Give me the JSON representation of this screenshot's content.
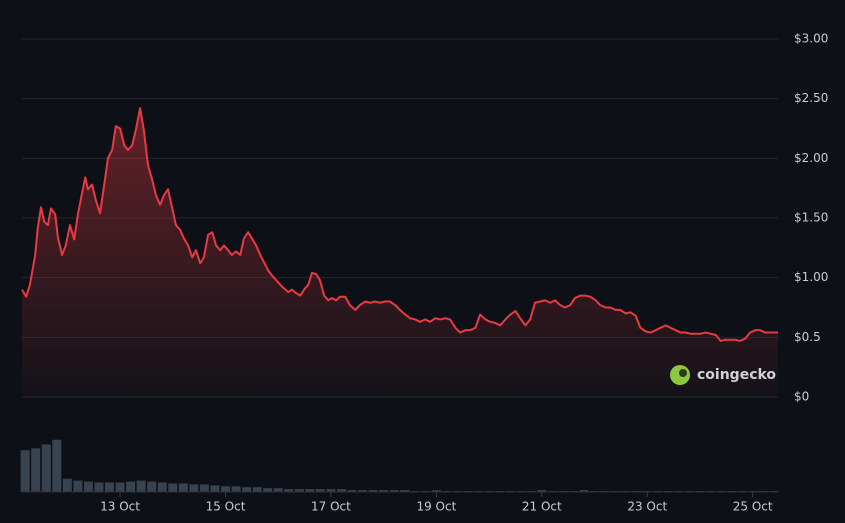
{
  "chart_data": {
    "type": "area",
    "color": "#ea3943",
    "watermark": "coingecko",
    "xlim": [
      11.14,
      25.48
    ],
    "xticks": [
      {
        "value": 13,
        "label": "13 Oct"
      },
      {
        "value": 15,
        "label": "15 Oct"
      },
      {
        "value": 17,
        "label": "17 Oct"
      },
      {
        "value": 19,
        "label": "19 Oct"
      },
      {
        "value": 21,
        "label": "21 Oct"
      },
      {
        "value": 23,
        "label": "23 Oct"
      },
      {
        "value": 25,
        "label": "25 Oct"
      }
    ],
    "ylim": [
      0,
      3
    ],
    "yticks": [
      {
        "value": 0,
        "label": "$0"
      },
      {
        "value": 0.5,
        "label": "$0.5"
      },
      {
        "value": 1,
        "label": "$1.00"
      },
      {
        "value": 1.5,
        "label": "$1.50"
      },
      {
        "value": 2,
        "label": "$2.00"
      },
      {
        "value": 2.5,
        "label": "$2.50"
      },
      {
        "value": 3,
        "label": "$3.00"
      }
    ],
    "grid": true,
    "x": [
      11.14,
      11.22,
      11.29,
      11.39,
      11.44,
      11.5,
      11.56,
      11.63,
      11.69,
      11.77,
      11.82,
      11.9,
      11.97,
      12.05,
      12.13,
      12.2,
      12.28,
      12.34,
      12.39,
      12.47,
      12.54,
      12.62,
      12.7,
      12.77,
      12.85,
      12.92,
      13.0,
      13.08,
      13.15,
      13.23,
      13.3,
      13.38,
      13.45,
      13.53,
      13.61,
      13.68,
      13.76,
      13.83,
      13.91,
      13.99,
      14.06,
      14.14,
      14.21,
      14.29,
      14.37,
      14.44,
      14.52,
      14.59,
      14.67,
      14.75,
      14.82,
      14.9,
      14.97,
      15.05,
      15.12,
      15.2,
      15.28,
      15.35,
      15.43,
      15.5,
      15.58,
      15.66,
      15.73,
      15.81,
      15.88,
      15.96,
      16.04,
      16.11,
      16.19,
      16.26,
      16.34,
      16.42,
      16.49,
      16.57,
      16.64,
      16.72,
      16.79,
      16.87,
      16.95,
      17.02,
      17.1,
      17.17,
      17.27,
      17.36,
      17.46,
      17.55,
      17.65,
      17.74,
      17.84,
      17.93,
      18.03,
      18.12,
      18.22,
      18.31,
      18.41,
      18.5,
      18.6,
      18.69,
      18.79,
      18.88,
      18.98,
      19.07,
      19.17,
      19.26,
      19.36,
      19.45,
      19.55,
      19.64,
      19.74,
      19.83,
      19.93,
      20.02,
      20.12,
      20.21,
      20.31,
      20.4,
      20.5,
      20.59,
      20.69,
      20.78,
      20.87,
      20.97,
      21.06,
      21.16,
      21.25,
      21.35,
      21.44,
      21.54,
      21.63,
      21.73,
      21.82,
      21.92,
      22.02,
      22.11,
      22.21,
      22.3,
      22.4,
      22.49,
      22.59,
      22.68,
      22.78,
      22.87,
      22.97,
      23.06,
      23.16,
      23.25,
      23.35,
      23.44,
      23.54,
      23.63,
      23.73,
      23.82,
      23.92,
      24.01,
      24.11,
      24.2,
      24.3,
      24.39,
      24.48,
      24.57,
      24.67,
      24.76,
      24.86,
      24.95,
      25.05,
      25.14,
      25.24,
      25.33,
      25.48
    ],
    "values": [
      0.9,
      0.84,
      0.94,
      1.19,
      1.42,
      1.59,
      1.47,
      1.44,
      1.58,
      1.53,
      1.34,
      1.19,
      1.27,
      1.44,
      1.32,
      1.53,
      1.71,
      1.84,
      1.74,
      1.78,
      1.65,
      1.54,
      1.78,
      2.0,
      2.07,
      2.27,
      2.25,
      2.11,
      2.07,
      2.11,
      2.24,
      2.42,
      2.24,
      1.94,
      1.82,
      1.69,
      1.61,
      1.69,
      1.74,
      1.58,
      1.44,
      1.4,
      1.33,
      1.27,
      1.17,
      1.23,
      1.12,
      1.17,
      1.36,
      1.38,
      1.27,
      1.23,
      1.27,
      1.23,
      1.19,
      1.22,
      1.19,
      1.33,
      1.38,
      1.33,
      1.27,
      1.19,
      1.13,
      1.06,
      1.02,
      0.98,
      0.94,
      0.91,
      0.88,
      0.9,
      0.87,
      0.85,
      0.9,
      0.94,
      1.04,
      1.03,
      0.98,
      0.85,
      0.81,
      0.83,
      0.81,
      0.84,
      0.84,
      0.77,
      0.73,
      0.77,
      0.8,
      0.79,
      0.8,
      0.79,
      0.8,
      0.8,
      0.77,
      0.73,
      0.69,
      0.66,
      0.65,
      0.63,
      0.65,
      0.63,
      0.66,
      0.65,
      0.66,
      0.65,
      0.58,
      0.54,
      0.56,
      0.56,
      0.58,
      0.69,
      0.65,
      0.63,
      0.62,
      0.6,
      0.65,
      0.69,
      0.72,
      0.66,
      0.6,
      0.65,
      0.79,
      0.8,
      0.81,
      0.79,
      0.81,
      0.77,
      0.75,
      0.77,
      0.83,
      0.85,
      0.85,
      0.84,
      0.81,
      0.77,
      0.75,
      0.75,
      0.73,
      0.73,
      0.7,
      0.71,
      0.68,
      0.58,
      0.55,
      0.54,
      0.56,
      0.58,
      0.6,
      0.58,
      0.56,
      0.54,
      0.54,
      0.53,
      0.53,
      0.53,
      0.54,
      0.53,
      0.52,
      0.47,
      0.48,
      0.48,
      0.48,
      0.47,
      0.49,
      0.54,
      0.56,
      0.56,
      0.54,
      0.54,
      0.54
    ],
    "volume": {
      "color": "#39424f",
      "ylim": [
        0,
        60
      ],
      "x": [
        11.2,
        11.4,
        11.6,
        11.8,
        12.0,
        12.2,
        12.4,
        12.6,
        12.8,
        13.0,
        13.2,
        13.4,
        13.6,
        13.8,
        14.0,
        14.2,
        14.4,
        14.6,
        14.8,
        15.0,
        15.2,
        15.4,
        15.6,
        15.8,
        16.0,
        16.2,
        16.4,
        16.6,
        16.8,
        17.0,
        17.2,
        17.4,
        17.6,
        17.8,
        18.0,
        18.2,
        18.4,
        18.6,
        18.8,
        19.0,
        19.2,
        19.4,
        19.6,
        19.8,
        20.0,
        20.2,
        20.4,
        20.6,
        20.8,
        21.0,
        21.2,
        21.4,
        21.6,
        21.8,
        22.0,
        22.2,
        22.4,
        22.6,
        22.8,
        23.0,
        23.2,
        23.4,
        23.6,
        23.8,
        24.0,
        24.2,
        24.4,
        24.6,
        24.8,
        25.0,
        25.2,
        25.4
      ],
      "values": [
        44,
        46,
        50,
        55,
        14,
        12,
        11,
        10,
        10,
        10,
        11,
        12,
        11,
        10,
        9,
        9,
        8,
        8,
        7,
        6,
        6,
        5,
        5,
        4,
        4,
        3,
        3,
        3,
        3,
        3,
        3,
        2,
        2,
        2,
        2,
        2,
        2,
        1,
        1,
        2,
        1,
        1,
        1,
        1,
        1,
        1,
        1,
        1,
        1,
        2,
        1,
        1,
        1,
        2,
        1,
        1,
        1,
        1,
        1,
        1,
        1,
        1,
        1,
        1,
        1,
        1,
        1,
        1,
        1,
        1,
        1,
        1
      ]
    }
  }
}
